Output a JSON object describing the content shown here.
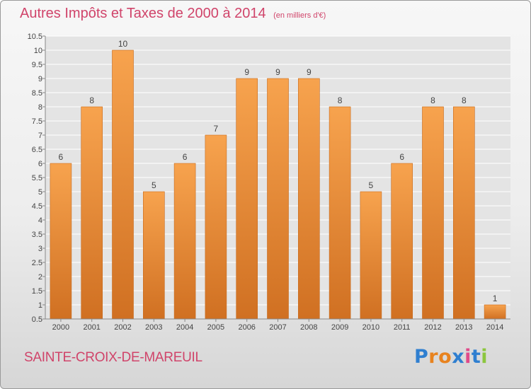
{
  "header": {
    "title": "Autres Impôts et Taxes de 2000 à 2014",
    "subtitle": "(en milliers d'€)"
  },
  "footer": {
    "commune": "SAINTE-CROIX-DE-MAREUIL",
    "brand": "Proxiti",
    "brand_colors": [
      "#2f7fd0",
      "#e8831f",
      "#e8831f",
      "#2f7fd0",
      "#e04a8a",
      "#2f7fd0",
      "#8cc63e"
    ]
  },
  "colors": {
    "bar_top": "#f7a34e",
    "bar_bottom": "#d07022",
    "bar_edge": "#c86a1c",
    "title": "#d0446a",
    "label": "#444444",
    "grid": "#ffffff"
  },
  "chart_data": {
    "type": "bar",
    "title": "Autres Impôts et Taxes de 2000 à 2014",
    "subtitle": "(en milliers d'€)",
    "categories": [
      "2000",
      "2001",
      "2002",
      "2003",
      "2004",
      "2005",
      "2006",
      "2007",
      "2008",
      "2009",
      "2010",
      "2011",
      "2012",
      "2013",
      "2014"
    ],
    "values": [
      6,
      8,
      10,
      5,
      6,
      7,
      9,
      9,
      9,
      8,
      5,
      6,
      8,
      8,
      1
    ],
    "ylim": [
      0.5,
      10.5
    ],
    "yticks": [
      "0.5",
      "1",
      "1.5",
      "2",
      "2.5",
      "3",
      "3.5",
      "4",
      "4.5",
      "5",
      "5.5",
      "6",
      "6.5",
      "7",
      "7.5",
      "8",
      "8.5",
      "9",
      "9.5",
      "10",
      "10.5"
    ],
    "grid": true,
    "legend": "none"
  }
}
